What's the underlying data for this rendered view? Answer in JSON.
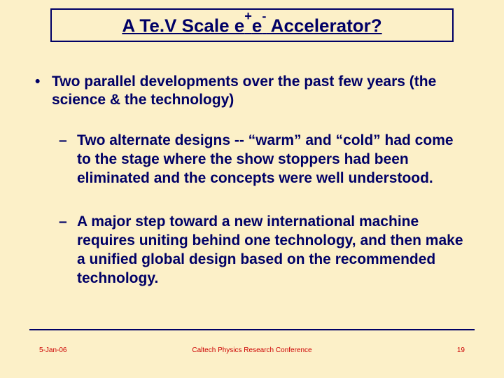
{
  "colors": {
    "background": "#fcf0c8",
    "title_border": "#000066",
    "title_text": "#000066",
    "body_text": "#000066",
    "footer_rule": "#000066",
    "footer_text": "#cc0000"
  },
  "title": {
    "prefix": "A Te.V Scale e",
    "sup1": "+",
    "mid": "e",
    "sup2": "-",
    "suffix": " Accelerator?"
  },
  "bullets": {
    "main": {
      "pre": "Two parallel developments over the past few years  (the science & ",
      "tech": "the technology",
      "post": ")"
    },
    "sub1": "Two alternate designs -- “warm” and “cold” had come to the stage where the show stoppers had been eliminated and the concepts were well understood.",
    "sub2": "A major step toward a new international machine requires uniting behind one technology, and then make a unified global design based on the recommended technology."
  },
  "footer": {
    "date": "5-Jan-06",
    "conference": "Caltech Physics Research Conference",
    "page": "19"
  }
}
